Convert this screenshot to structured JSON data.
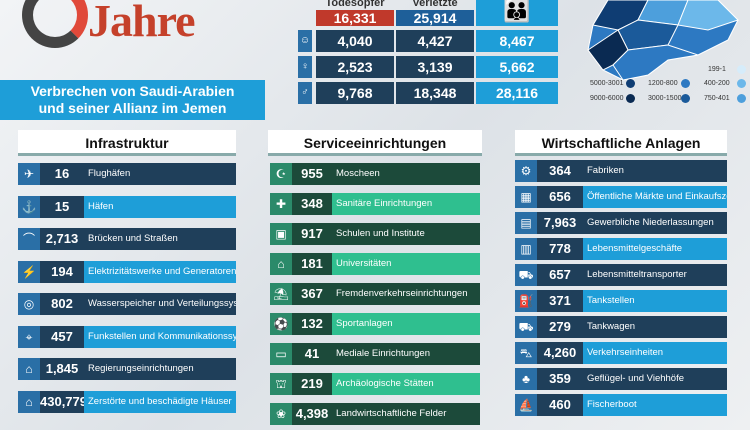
{
  "header": {
    "logo_word": "Jahre",
    "banner_line1": "Verbrechen von Saudi-Arabien",
    "banner_line2": "und seiner Allianz im Jemen"
  },
  "stats": {
    "col1_head": "Todesopfer",
    "col2_head": "Verletzte",
    "top": [
      "16,331",
      "25,914"
    ],
    "rows": [
      [
        "4,040",
        "4,427",
        "8,467"
      ],
      [
        "2,523",
        "3,139",
        "5,662"
      ],
      [
        "9,768",
        "18,348",
        "28,116"
      ]
    ],
    "row_icons": [
      "child-icon",
      "woman-icon",
      "man-icon"
    ],
    "family_icon": "family-icon"
  },
  "map_legend": [
    {
      "label": "199-1",
      "color": "#d6ecfa"
    },
    {
      "label": "5000-3001",
      "color": "#0f3d73"
    },
    {
      "label": "1200-800",
      "color": "#2d79c2"
    },
    {
      "label": "400-200",
      "color": "#6cb8ea"
    },
    {
      "label": "9000-6000",
      "color": "#0a2a52"
    },
    {
      "label": "3000-1500",
      "color": "#1b5a9a"
    },
    {
      "label": "750-401",
      "color": "#4d9fdc"
    }
  ],
  "infrastructure": {
    "title": "Infrastruktur",
    "items": [
      {
        "value": "16",
        "label": "Flughäfen",
        "icon": "airplane-icon"
      },
      {
        "value": "15",
        "label": "Häfen",
        "icon": "anchor-icon"
      },
      {
        "value": "2,713",
        "label": "Brücken und Straßen",
        "icon": "bridge-icon"
      },
      {
        "value": "194",
        "label": "Elektrizitätswerke und Generatoren",
        "icon": "power-icon"
      },
      {
        "value": "802",
        "label": "Wasserspeicher und Verteilungssysteme",
        "icon": "water-icon"
      },
      {
        "value": "457",
        "label": "Funkstellen und Kommunikationssysteme",
        "icon": "antenna-icon"
      },
      {
        "value": "1,845",
        "label": "Regierungseinrichtungen",
        "icon": "government-icon"
      },
      {
        "value": "430,779",
        "label": "Zerstörte und beschädigte Häuser",
        "icon": "house-icon"
      }
    ]
  },
  "services": {
    "title": "Serviceeinrichtungen",
    "items": [
      {
        "value": "955",
        "label": "Moscheen",
        "icon": "mosque-icon"
      },
      {
        "value": "348",
        "label": "Sanitäre Einrichtungen",
        "icon": "hospital-icon"
      },
      {
        "value": "917",
        "label": "Schulen und Institute",
        "icon": "school-icon"
      },
      {
        "value": "181",
        "label": "Universitäten",
        "icon": "university-icon"
      },
      {
        "value": "367",
        "label": "Fremdenverkehrseinrichtungen",
        "icon": "tourism-icon"
      },
      {
        "value": "132",
        "label": "Sportanlagen",
        "icon": "sports-icon"
      },
      {
        "value": "41",
        "label": "Mediale Einrichtungen",
        "icon": "media-icon"
      },
      {
        "value": "219",
        "label": "Archäologische Stätten",
        "icon": "archaeology-icon"
      },
      {
        "value": "4,398",
        "label": "Landwirtschaftliche Felder",
        "icon": "farm-icon"
      }
    ]
  },
  "economy": {
    "title": "Wirtschaftliche Anlagen",
    "items": [
      {
        "value": "364",
        "label": "Fabriken",
        "icon": "factory-icon"
      },
      {
        "value": "656",
        "label": "Öffentliche Märkte und Einkaufszentren",
        "icon": "market-icon"
      },
      {
        "value": "7,963",
        "label": "Gewerbliche Niederlassungen",
        "icon": "shop-icon"
      },
      {
        "value": "778",
        "label": "Lebensmittelgeschäfte",
        "icon": "grocery-icon"
      },
      {
        "value": "657",
        "label": "Lebensmitteltransporter",
        "icon": "truck-icon"
      },
      {
        "value": "371",
        "label": "Tankstellen",
        "icon": "fuel-icon"
      },
      {
        "value": "279",
        "label": "Tankwagen",
        "icon": "tanker-icon"
      },
      {
        "value": "4,260",
        "label": "Verkehrseinheiten",
        "icon": "car-icon"
      },
      {
        "value": "359",
        "label": "Geflügel- und Viehhöfe",
        "icon": "poultry-icon"
      },
      {
        "value": "460",
        "label": "Fischerboot",
        "icon": "boat-icon"
      }
    ]
  },
  "colors": {
    "infra_dark": "#1f3f5a",
    "infra_light": "#1e9ed8",
    "service_dark": "#1c4a3a",
    "service_light": "#2fbf8f",
    "econ_dark": "#1f3f5a",
    "econ_light": "#1e9ed8"
  }
}
